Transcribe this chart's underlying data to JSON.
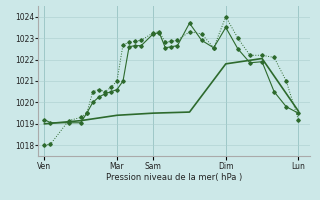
{
  "title": "",
  "xlabel": "Pression niveau de la mer( hPa )",
  "ylim": [
    1017.5,
    1024.5
  ],
  "yticks": [
    1018,
    1019,
    1020,
    1021,
    1022,
    1023,
    1024
  ],
  "bg_color": "#cce8e8",
  "grid_color": "#aacece",
  "line_color": "#2d6a2d",
  "day_labels": [
    "Ven",
    "",
    "Mar",
    "Sam",
    "",
    "Dim",
    "",
    "Lun"
  ],
  "day_positions": [
    0,
    3,
    6,
    9,
    12,
    15,
    18,
    21
  ],
  "xtick_labels_show": [
    "Ven",
    "Mar",
    "Sam",
    "Dim",
    "Lun"
  ],
  "xtick_labels_pos": [
    0,
    6,
    9,
    15,
    21
  ],
  "line1_x": [
    0,
    0.5,
    2,
    3,
    3.5,
    4,
    4.5,
    5,
    5.5,
    6,
    6.5,
    7,
    7.5,
    8,
    9,
    9.5,
    10,
    10.5,
    11,
    12,
    13,
    14,
    15,
    16,
    17,
    18,
    19,
    20,
    21
  ],
  "line1_y": [
    1018.0,
    1018.05,
    1019.15,
    1019.3,
    1019.5,
    1020.5,
    1020.6,
    1020.5,
    1020.7,
    1021.0,
    1022.7,
    1022.8,
    1022.85,
    1022.9,
    1023.25,
    1023.3,
    1022.8,
    1022.85,
    1022.9,
    1023.3,
    1023.2,
    1022.55,
    1024.0,
    1023.0,
    1022.2,
    1022.2,
    1022.1,
    1021.0,
    1019.2
  ],
  "line2_x": [
    0,
    0.5,
    2,
    3,
    3.5,
    4,
    4.5,
    5,
    5.5,
    6,
    6.5,
    7,
    7.5,
    8,
    9,
    9.5,
    10,
    10.5,
    11,
    12,
    13,
    14,
    15,
    16,
    17,
    18,
    19,
    20,
    21
  ],
  "line2_y": [
    1019.2,
    1019.05,
    1019.05,
    1019.05,
    1019.5,
    1020.0,
    1020.25,
    1020.4,
    1020.5,
    1020.6,
    1021.0,
    1022.6,
    1022.65,
    1022.65,
    1023.2,
    1023.25,
    1022.55,
    1022.6,
    1022.65,
    1023.7,
    1022.9,
    1022.55,
    1023.5,
    1022.5,
    1021.85,
    1021.9,
    1020.5,
    1019.8,
    1019.5
  ],
  "line3_x": [
    0,
    3,
    6,
    9,
    12,
    15,
    18,
    21
  ],
  "line3_y": [
    1019.0,
    1019.15,
    1019.4,
    1019.5,
    1019.55,
    1021.8,
    1022.05,
    1019.6
  ]
}
